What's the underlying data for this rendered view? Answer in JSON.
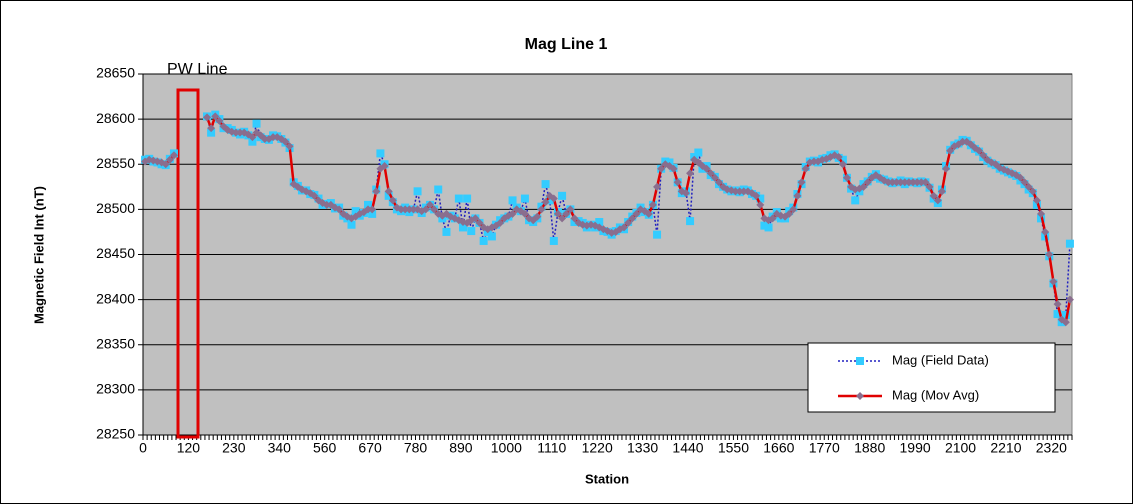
{
  "chart_data": {
    "type": "line",
    "title": "Mag Line 1",
    "x_label": "Station",
    "y_label": "Magnetic Field Int (nT)",
    "annotation": "PW Line",
    "categories": [
      "0",
      null,
      null,
      null,
      null,
      null,
      null,
      null,
      null,
      null,
      null,
      "120",
      null,
      null,
      null,
      null,
      null,
      null,
      null,
      null,
      null,
      null,
      "230",
      null,
      null,
      null,
      null,
      null,
      null,
      null,
      null,
      null,
      null,
      "340",
      null,
      null,
      null,
      null,
      null,
      null,
      null,
      null,
      null,
      null,
      "560",
      null,
      null,
      null,
      null,
      null,
      null,
      null,
      null,
      null,
      null,
      "670",
      null,
      null,
      null,
      null,
      null,
      null,
      null,
      null,
      null,
      null,
      "780",
      null,
      null,
      null,
      null,
      null,
      null,
      null,
      null,
      null,
      null,
      "890",
      null,
      null,
      null,
      null,
      null,
      null,
      null,
      null,
      null,
      null,
      "1000",
      null,
      null,
      null,
      null,
      null,
      null,
      null,
      null,
      null,
      null,
      "1110",
      null,
      null,
      null,
      null,
      null,
      null,
      null,
      null,
      null,
      null,
      "1220",
      null,
      null,
      null,
      null,
      null,
      null,
      null,
      null,
      null,
      null,
      "1330",
      null,
      null,
      null,
      null,
      null,
      null,
      null,
      null,
      null,
      null,
      "1440",
      null,
      null,
      null,
      null,
      null,
      null,
      null,
      null,
      null,
      null,
      "1550",
      null,
      null,
      null,
      null,
      null,
      null,
      null,
      null,
      null,
      null,
      "1660",
      null,
      null,
      null,
      null,
      null,
      null,
      null,
      null,
      null,
      null,
      "1770",
      null,
      null,
      null,
      null,
      null,
      null,
      null,
      null,
      null,
      null,
      "1880",
      null,
      null,
      null,
      null,
      null,
      null,
      null,
      null,
      null,
      null,
      "1990",
      null,
      null,
      null,
      null,
      null,
      null,
      null,
      null,
      null,
      null,
      "2100",
      null,
      null,
      null,
      null,
      null,
      null,
      null,
      null,
      null,
      null,
      "2210",
      null,
      null,
      null,
      null,
      null,
      null,
      null,
      null,
      null,
      null,
      "2320",
      null,
      null,
      null,
      null
    ],
    "series": [
      {
        "name": "Mag (Field Data)",
        "color": "#2020c0",
        "marker_color": "#33ccff",
        "marker": "square",
        "linestyle": "dotted",
        "values": [
          28555,
          28556,
          28553,
          28552,
          28550,
          28549,
          28556,
          28562,
          null,
          null,
          null,
          null,
          null,
          null,
          null,
          28603,
          28585,
          28605,
          28600,
          28590,
          28590,
          28588,
          28585,
          28583,
          28586,
          28582,
          28575,
          28595,
          28580,
          28578,
          28577,
          28582,
          28581,
          28578,
          28574,
          28568,
          28530,
          28526,
          28521,
          28521,
          28517,
          28516,
          28512,
          28505,
          28506,
          28507,
          28501,
          28502,
          28493,
          28490,
          28483,
          28498,
          28493,
          28496,
          28505,
          28495,
          28522,
          28562,
          28550,
          28515,
          28508,
          28500,
          28498,
          28502,
          28497,
          28500,
          28520,
          28496,
          28502,
          28505,
          28500,
          28522,
          28490,
          28475,
          28493,
          28490,
          28512,
          28480,
          28512,
          28476,
          28490,
          28485,
          28465,
          28475,
          28470,
          28483,
          28488,
          28490,
          28492,
          28510,
          28502,
          28498,
          28512,
          28488,
          28486,
          28490,
          28503,
          28528,
          28510,
          28465,
          28497,
          28515,
          28495,
          28500,
          28486,
          28487,
          28485,
          28480,
          28483,
          28480,
          28486,
          28476,
          28475,
          28472,
          28476,
          28480,
          28478,
          28486,
          28492,
          28496,
          28502,
          28497,
          28494,
          28505,
          28472,
          28545,
          28553,
          28552,
          28546,
          28530,
          28518,
          28520,
          28487,
          28558,
          28563,
          28545,
          28548,
          28538,
          28536,
          28528,
          28525,
          28522,
          28520,
          28521,
          28519,
          28522,
          28521,
          28517,
          28515,
          28512,
          28482,
          28480,
          28492,
          28497,
          28490,
          28490,
          28498,
          28502,
          28517,
          28528,
          28547,
          28553,
          28554,
          28552,
          28556,
          28557,
          28560,
          28561,
          28557,
          28555,
          28535,
          28523,
          28510,
          28520,
          28528,
          28531,
          28536,
          28539,
          28534,
          28533,
          28531,
          28529,
          28530,
          28532,
          28528,
          28531,
          28530,
          28529,
          28531,
          28530,
          28524,
          28512,
          28507,
          28522,
          28548,
          28566,
          28571,
          28573,
          28577,
          28576,
          28571,
          28567,
          28564,
          28558,
          28554,
          28551,
          28549,
          28545,
          28543,
          28541,
          28539,
          28537,
          28532,
          28528,
          28522,
          28518,
          28505,
          28490,
          28470,
          28448,
          28418,
          28384,
          28375,
          28383,
          28462
        ]
      },
      {
        "name": "Mag (Mov Avg)",
        "color": "#e00000",
        "marker_color": "#8a6e8e",
        "marker": "diamond",
        "linestyle": "solid",
        "values": [
          28553,
          28555,
          28554,
          28553,
          28552,
          28550,
          28555,
          28560,
          null,
          null,
          null,
          null,
          null,
          null,
          null,
          28602,
          28590,
          28603,
          28598,
          28592,
          28588,
          28586,
          28585,
          28585,
          28585,
          28583,
          28580,
          28585,
          28582,
          28578,
          28578,
          28580,
          28580,
          28578,
          28575,
          28570,
          28528,
          28525,
          28522,
          28520,
          28518,
          28515,
          28510,
          28507,
          28505,
          28505,
          28502,
          28500,
          28495,
          28492,
          28490,
          28492,
          28495,
          28497,
          28500,
          28500,
          28520,
          28545,
          28548,
          28520,
          28510,
          28502,
          28500,
          28500,
          28500,
          28500,
          28500,
          28498,
          28500,
          28505,
          28500,
          28495,
          28493,
          28495,
          28492,
          28490,
          28488,
          28486,
          28485,
          28488,
          28490,
          28485,
          28480,
          28478,
          28480,
          28482,
          28485,
          28490,
          28493,
          28495,
          28500,
          28498,
          28495,
          28490,
          28488,
          28492,
          28500,
          28508,
          28515,
          28512,
          28495,
          28490,
          28495,
          28500,
          28490,
          28485,
          28483,
          28482,
          28483,
          28482,
          28480,
          28478,
          28476,
          28474,
          28475,
          28478,
          28480,
          28485,
          28490,
          28495,
          28500,
          28498,
          28495,
          28505,
          28525,
          28545,
          28550,
          28548,
          28545,
          28530,
          28520,
          28518,
          28540,
          28555,
          28552,
          28548,
          28545,
          28540,
          28535,
          28530,
          28525,
          28522,
          28521,
          28520,
          28520,
          28520,
          28520,
          28518,
          28515,
          28505,
          28490,
          28488,
          28490,
          28495,
          28493,
          28492,
          28495,
          28500,
          28515,
          28530,
          28545,
          28552,
          28553,
          28553,
          28555,
          28556,
          28558,
          28560,
          28558,
          28550,
          28535,
          28525,
          28522,
          28523,
          28525,
          28530,
          28535,
          28538,
          28535,
          28532,
          28530,
          28530,
          28530,
          28530,
          28530,
          28530,
          28530,
          28530,
          28530,
          28530,
          28525,
          28515,
          28510,
          28520,
          28545,
          28565,
          28570,
          28572,
          28575,
          28575,
          28572,
          28568,
          28565,
          28560,
          28555,
          28552,
          28550,
          28546,
          28544,
          28542,
          28540,
          28538,
          28535,
          28530,
          28525,
          28520,
          28510,
          28495,
          28475,
          28450,
          28420,
          28395,
          28378,
          28375,
          28400
        ]
      }
    ],
    "ylim": [
      28250,
      28650
    ],
    "yticks": [
      28250,
      28300,
      28350,
      28400,
      28450,
      28500,
      28550,
      28600,
      28650
    ],
    "grid": true,
    "legend": "lower right",
    "plot_background": "#c0c0c0"
  }
}
